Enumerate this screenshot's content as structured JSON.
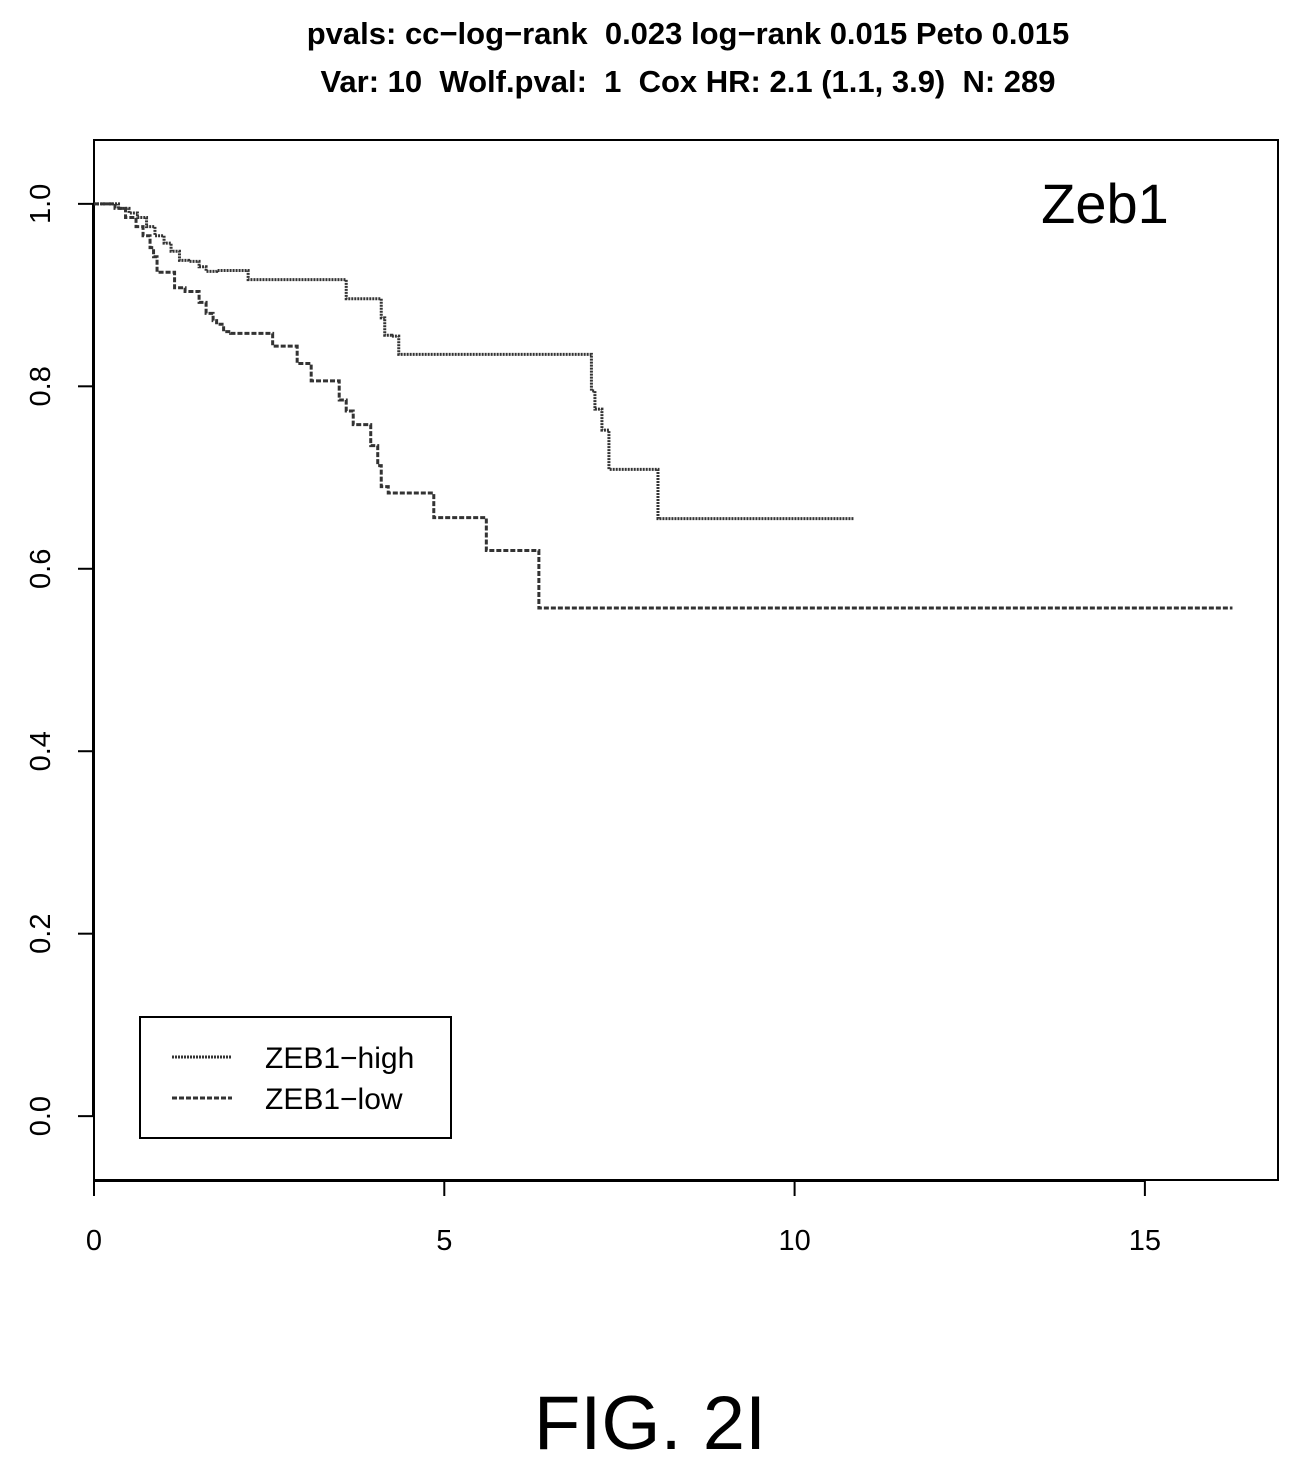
{
  "figure": {
    "title_line1": "pvals: cc−log−rank  0.023 log−rank 0.015 Peto 0.015",
    "title_line2": "Var: 10  Wolf.pval:  1  Cox HR: 2.1 (1.1, 3.9)  N: 289",
    "panel_label": "Zeb1",
    "fig_label": "FIG. 2I"
  },
  "chart_data": {
    "type": "line",
    "step": true,
    "title": "pvals: cc−log−rank  0.023 log−rank 0.015 Peto 0.015 / Var: 10  Wolf.pval:  1  Cox HR: 2.1 (1.1, 3.9)  N: 289",
    "xlabel": "",
    "ylabel": "",
    "xlim": [
      0,
      16.9
    ],
    "ylim": [
      -0.07,
      1.07
    ],
    "x_ticks": [
      0,
      5,
      10,
      15
    ],
    "x_tick_labels": [
      "0",
      "5",
      "10",
      "15"
    ],
    "y_ticks": [
      0.0,
      0.2,
      0.4,
      0.6,
      0.8,
      1.0
    ],
    "y_tick_labels": [
      "0.0",
      "0.2",
      "0.4",
      "0.6",
      "0.8",
      "1.0"
    ],
    "grid": false,
    "legend_position": "bottom-left",
    "series": [
      {
        "name": "ZEB1−high",
        "color": "#333333",
        "x": [
          0,
          0.35,
          0.5,
          0.62,
          0.75,
          0.87,
          1.0,
          1.1,
          1.22,
          1.35,
          1.5,
          1.6,
          1.75,
          2.2,
          3.6,
          4.1,
          4.15,
          4.25,
          4.35,
          7.1,
          7.15,
          7.25,
          7.35,
          8.05,
          10.85
        ],
        "y": [
          1.0,
          0.995,
          0.99,
          0.985,
          0.975,
          0.965,
          0.957,
          0.948,
          0.938,
          0.937,
          0.931,
          0.926,
          0.927,
          0.917,
          0.896,
          0.875,
          0.856,
          0.855,
          0.835,
          0.795,
          0.775,
          0.752,
          0.709,
          0.655,
          0.655
        ]
      },
      {
        "name": "ZEB1−low",
        "color": "#333333",
        "x": [
          0,
          0.3,
          0.45,
          0.6,
          0.7,
          0.8,
          0.85,
          0.9,
          1.15,
          1.3,
          1.5,
          1.6,
          1.7,
          1.75,
          1.85,
          1.95,
          2.55,
          2.9,
          3.1,
          3.5,
          3.6,
          3.7,
          3.95,
          4.05,
          4.1,
          4.2,
          4.85,
          5.6,
          6.35,
          16.25
        ],
        "y": [
          1.0,
          0.995,
          0.985,
          0.975,
          0.965,
          0.952,
          0.942,
          0.925,
          0.908,
          0.904,
          0.892,
          0.88,
          0.872,
          0.868,
          0.86,
          0.858,
          0.844,
          0.825,
          0.806,
          0.785,
          0.773,
          0.758,
          0.735,
          0.713,
          0.69,
          0.683,
          0.656,
          0.62,
          0.557,
          0.557
        ]
      }
    ]
  }
}
